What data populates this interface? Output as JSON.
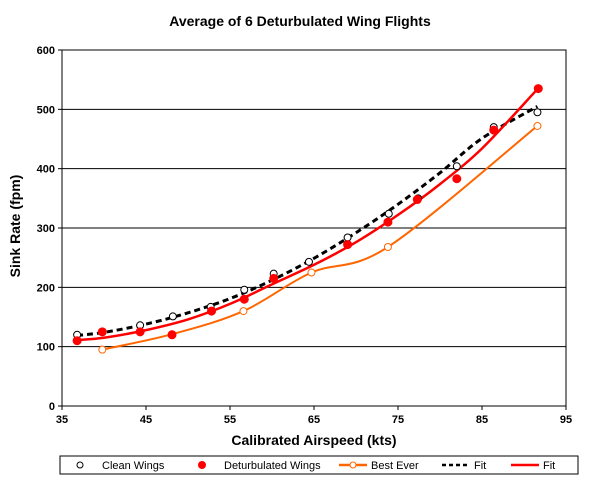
{
  "chart_data": {
    "type": "scatter",
    "title": "Average of 6 Deturbulated Wing Flights",
    "xlabel": "Calibrated Airspeed (kts)",
    "ylabel": "Sink Rate (fpm)",
    "xlim": [
      35,
      95
    ],
    "ylim": [
      0,
      600
    ],
    "xticks": [
      35,
      45,
      55,
      65,
      75,
      85,
      95
    ],
    "yticks": [
      0,
      100,
      200,
      300,
      400,
      500,
      600
    ],
    "grid": "horizontal",
    "legend_position": "bottom",
    "series": [
      {
        "name": "Clean Wings",
        "kind": "markers",
        "marker": "open-circle",
        "color": "#000000",
        "x": [
          36.8,
          44.3,
          48.2,
          52.7,
          56.7,
          60.2,
          64.4,
          69.0,
          73.9,
          77.4,
          82.0,
          86.4,
          91.6
        ],
        "y": [
          120,
          136,
          151,
          167,
          196,
          223,
          243,
          284,
          324,
          350,
          404,
          470,
          495
        ]
      },
      {
        "name": "Deturbulated Wings",
        "kind": "markers",
        "marker": "filled-circle",
        "color": "#ff0000",
        "x": [
          36.8,
          39.8,
          44.3,
          48.1,
          52.8,
          56.7,
          60.2,
          69.0,
          73.8,
          77.3,
          82.0,
          86.4,
          91.7
        ],
        "y": [
          110,
          125,
          125,
          120,
          160,
          180,
          215,
          272,
          310,
          348,
          383,
          465,
          535
        ]
      },
      {
        "name": "Best Ever",
        "kind": "line-markers",
        "marker": "open-circle",
        "color": "#ff6600",
        "x": [
          39.8,
          48.1,
          56.6,
          64.7,
          73.8,
          91.6
        ],
        "y": [
          95,
          121,
          160,
          225,
          268,
          472
        ]
      },
      {
        "name": "Fit",
        "kind": "dashed-line",
        "color": "#000000",
        "x": [
          36.8,
          40,
          45,
          50,
          55,
          60,
          65,
          70,
          75,
          80,
          85,
          91.6
        ],
        "y": [
          119,
          124,
          138,
          157,
          181,
          212,
          249,
          292,
          340,
          393,
          451,
          505
        ]
      },
      {
        "name": "Fit",
        "kind": "solid-line",
        "color": "#ff0000",
        "x": [
          36.8,
          40,
          45,
          50,
          55,
          60,
          65,
          70,
          75,
          80,
          85,
          91.6
        ],
        "y": [
          111,
          115,
          128,
          146,
          172,
          205,
          238,
          276,
          322,
          374,
          434,
          534
        ]
      }
    ]
  }
}
